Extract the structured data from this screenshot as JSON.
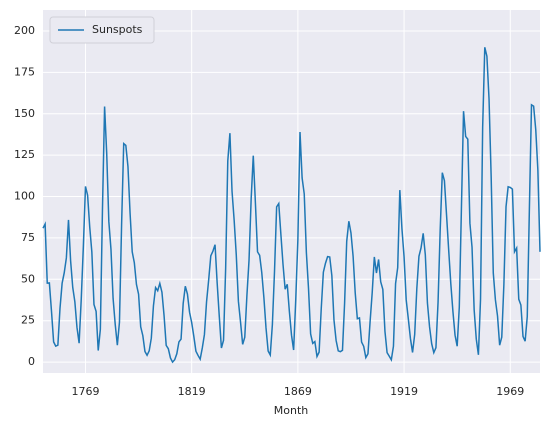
{
  "chart_data": {
    "type": "line",
    "xlabel": "Month",
    "x": [
      1749,
      1750,
      1751,
      1752,
      1753,
      1754,
      1755,
      1756,
      1757,
      1758,
      1759,
      1760,
      1761,
      1762,
      1763,
      1764,
      1765,
      1766,
      1767,
      1768,
      1769,
      1770,
      1771,
      1772,
      1773,
      1774,
      1775,
      1776,
      1777,
      1778,
      1779,
      1780,
      1781,
      1782,
      1783,
      1784,
      1785,
      1786,
      1787,
      1788,
      1789,
      1790,
      1791,
      1792,
      1793,
      1794,
      1795,
      1796,
      1797,
      1798,
      1799,
      1800,
      1801,
      1802,
      1803,
      1804,
      1805,
      1806,
      1807,
      1808,
      1809,
      1810,
      1811,
      1812,
      1813,
      1814,
      1815,
      1816,
      1817,
      1818,
      1819,
      1820,
      1821,
      1822,
      1823,
      1824,
      1825,
      1826,
      1827,
      1828,
      1829,
      1830,
      1831,
      1832,
      1833,
      1834,
      1835,
      1836,
      1837,
      1838,
      1839,
      1840,
      1841,
      1842,
      1843,
      1844,
      1845,
      1846,
      1847,
      1848,
      1849,
      1850,
      1851,
      1852,
      1853,
      1854,
      1855,
      1856,
      1857,
      1858,
      1859,
      1860,
      1861,
      1862,
      1863,
      1864,
      1865,
      1866,
      1867,
      1868,
      1869,
      1870,
      1871,
      1872,
      1873,
      1874,
      1875,
      1876,
      1877,
      1878,
      1879,
      1880,
      1881,
      1882,
      1883,
      1884,
      1885,
      1886,
      1887,
      1888,
      1889,
      1890,
      1891,
      1892,
      1893,
      1894,
      1895,
      1896,
      1897,
      1898,
      1899,
      1900,
      1901,
      1902,
      1903,
      1904,
      1905,
      1906,
      1907,
      1908,
      1909,
      1910,
      1911,
      1912,
      1913,
      1914,
      1915,
      1916,
      1917,
      1918,
      1919,
      1920,
      1921,
      1922,
      1923,
      1924,
      1925,
      1926,
      1927,
      1928,
      1929,
      1930,
      1931,
      1932,
      1933,
      1934,
      1935,
      1936,
      1937,
      1938,
      1939,
      1940,
      1941,
      1942,
      1943,
      1944,
      1945,
      1946,
      1947,
      1948,
      1949,
      1950,
      1951,
      1952,
      1953,
      1954,
      1955,
      1956,
      1957,
      1958,
      1959,
      1960,
      1961,
      1962,
      1963,
      1964,
      1965,
      1966,
      1967,
      1968,
      1969,
      1970,
      1971,
      1972,
      1973,
      1974,
      1975,
      1976,
      1977,
      1978,
      1979,
      1980,
      1981,
      1982,
      1983
    ],
    "series": [
      {
        "name": "Sunspots",
        "color": "#1f77b4",
        "values": [
          80.9,
          83.4,
          47.7,
          47.8,
          30.7,
          12.2,
          9.6,
          10.2,
          32.4,
          47.6,
          54.0,
          62.9,
          85.9,
          61.2,
          45.1,
          36.4,
          20.9,
          11.4,
          37.8,
          69.8,
          106.1,
          100.8,
          81.6,
          66.5,
          34.8,
          30.6,
          7.0,
          19.8,
          92.5,
          154.4,
          125.9,
          84.8,
          68.1,
          38.5,
          22.8,
          10.2,
          24.1,
          82.9,
          132.0,
          130.9,
          118.1,
          89.9,
          66.6,
          60.0,
          46.9,
          41.0,
          21.3,
          16.0,
          6.4,
          4.1,
          6.8,
          14.5,
          34.0,
          45.0,
          43.1,
          47.5,
          42.2,
          28.1,
          10.1,
          8.1,
          2.5,
          0.0,
          1.4,
          5.0,
          12.2,
          13.9,
          35.4,
          45.8,
          41.1,
          30.1,
          23.9,
          15.6,
          6.6,
          4.0,
          1.8,
          8.5,
          16.6,
          36.3,
          49.6,
          64.2,
          67.0,
          70.9,
          47.8,
          27.5,
          8.5,
          13.2,
          56.9,
          121.5,
          138.3,
          103.2,
          85.7,
          64.6,
          36.7,
          24.2,
          10.7,
          15.0,
          40.1,
          61.5,
          98.5,
          124.7,
          96.3,
          66.6,
          64.5,
          54.1,
          39.0,
          20.6,
          6.7,
          4.3,
          22.7,
          54.8,
          93.8,
          95.8,
          77.2,
          59.1,
          44.0,
          47.0,
          30.5,
          16.3,
          7.3,
          37.6,
          74.0,
          139.0,
          111.2,
          101.6,
          66.2,
          44.7,
          17.0,
          11.3,
          12.4,
          3.4,
          6.0,
          32.3,
          54.3,
          59.7,
          63.7,
          63.5,
          52.2,
          25.4,
          13.1,
          6.8,
          6.3,
          7.1,
          35.6,
          73.0,
          85.1,
          78.0,
          64.0,
          41.8,
          26.2,
          26.7,
          12.1,
          9.5,
          2.7,
          5.0,
          24.4,
          42.0,
          63.5,
          53.8,
          62.0,
          48.5,
          43.9,
          18.6,
          5.7,
          3.6,
          1.4,
          9.6,
          47.4,
          57.1,
          103.9,
          80.6,
          63.6,
          37.6,
          26.1,
          14.2,
          5.8,
          16.7,
          44.3,
          63.9,
          69.0,
          77.8,
          64.9,
          35.7,
          21.2,
          11.1,
          5.7,
          8.7,
          36.1,
          79.7,
          114.4,
          109.6,
          88.8,
          67.8,
          47.5,
          30.6,
          16.3,
          9.6,
          33.2,
          92.6,
          151.6,
          136.3,
          134.7,
          83.9,
          69.4,
          31.5,
          13.9,
          4.4,
          38.0,
          141.7,
          190.2,
          184.8,
          159.0,
          112.3,
          53.9,
          37.6,
          27.9,
          10.2,
          15.1,
          47.0,
          93.8,
          105.9,
          105.5,
          104.5,
          66.6,
          68.9,
          38.0,
          34.5,
          15.5,
          12.6,
          27.5,
          92.5,
          155.4,
          154.6,
          140.4,
          115.9,
          66.6
        ]
      }
    ],
    "xlim": [
      1749,
      1983
    ],
    "xticks": [
      1769,
      1819,
      1869,
      1919,
      1969
    ],
    "ylim": [
      -6.6,
      212.7
    ],
    "yticks": [
      0,
      25,
      50,
      75,
      100,
      125,
      150,
      175,
      200
    ],
    "grid": true,
    "legend": "upper left"
  }
}
